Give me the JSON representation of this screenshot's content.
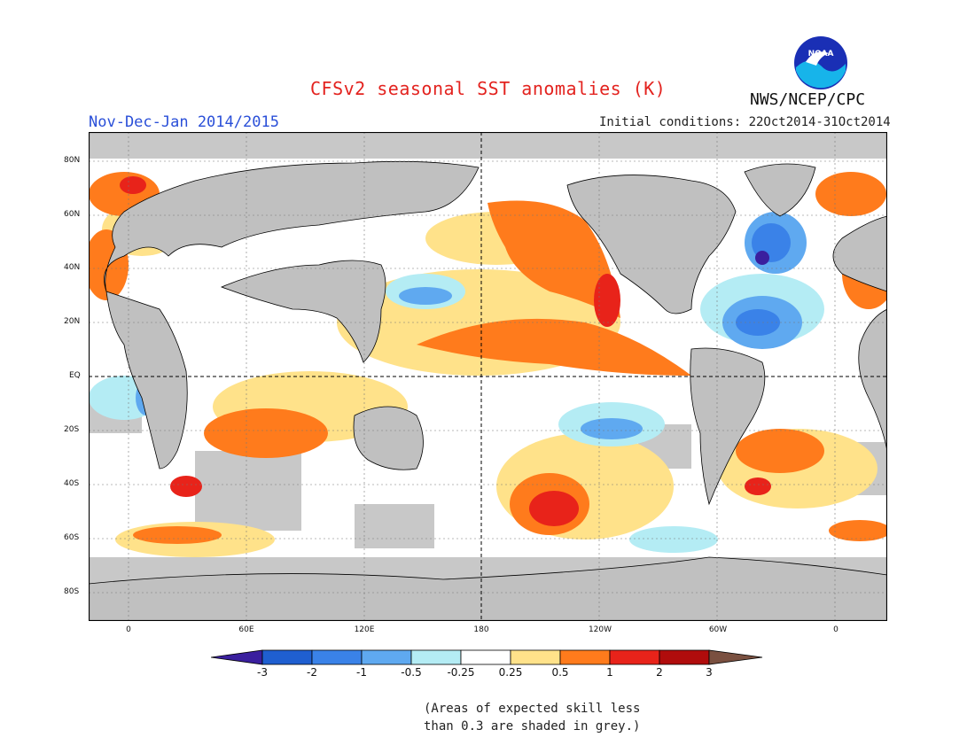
{
  "header": {
    "title": "CFSv2 seasonal SST anomalies (K)",
    "season": "Nov-Dec-Jan 2014/2015",
    "initial_conditions": "Initial conditions: 22Oct2014-31Oct2014",
    "agency": "NWS/NCEP/CPC",
    "logo_text": "NOAA"
  },
  "map": {
    "projection": "cylindrical",
    "lon_range": [
      -20,
      380
    ],
    "lat_range": [
      -90,
      90
    ],
    "lat_labels": [
      "80N",
      "60N",
      "40N",
      "20N",
      "EQ",
      "20S",
      "40S",
      "60S",
      "80S"
    ],
    "lon_labels": [
      "0",
      "60E",
      "120E",
      "180",
      "120W",
      "60W",
      "0"
    ],
    "colors": {
      "land": "#c0c0c0",
      "ocean_neutral": "#ffffff",
      "skill_mask": "#c8c8c8"
    }
  },
  "colorbar": {
    "labels": [
      "-3",
      "-2",
      "-1",
      "-0.5",
      "-0.25",
      "0.25",
      "0.5",
      "1",
      "2",
      "3"
    ],
    "colors": [
      "#3a1f9e",
      "#1f5fd0",
      "#3a82e8",
      "#5fa9f0",
      "#b4ecf4",
      "#ffffff",
      "#ffe28a",
      "#ff7b1c",
      "#e8231a",
      "#b00c0c",
      "#7a5040"
    ]
  },
  "footnote": {
    "line1": "(Areas of expected skill less",
    "line2": "than 0.3 are shaded in grey.)"
  }
}
